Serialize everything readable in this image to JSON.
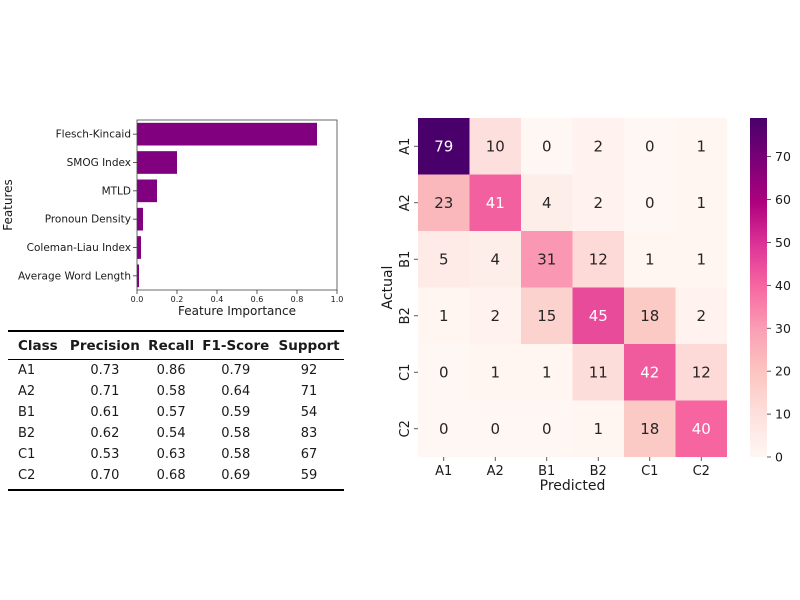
{
  "chart_data": [
    {
      "type": "bar",
      "orientation": "horizontal",
      "categories": [
        "Flesch-Kincaid",
        "SMOG Index",
        "MTLD",
        "Pronoun Density",
        "Coleman-Liau Index",
        "Average Word Length"
      ],
      "values": [
        0.9,
        0.2,
        0.1,
        0.03,
        0.02,
        0.01
      ],
      "xlabel": "Feature Importance",
      "ylabel": "Features",
      "xlim": [
        0,
        1.0
      ],
      "xticks": [
        "0.0",
        "0.2",
        "0.4",
        "0.6",
        "0.8",
        "1.0"
      ],
      "bar_color": "#800080",
      "grid": false
    },
    {
      "type": "table",
      "columns": [
        "Class",
        "Precision",
        "Recall",
        "F1-Score",
        "Support"
      ],
      "rows": [
        [
          "A1",
          "0.73",
          "0.86",
          "0.79",
          "92"
        ],
        [
          "A2",
          "0.71",
          "0.58",
          "0.64",
          "71"
        ],
        [
          "B1",
          "0.61",
          "0.57",
          "0.59",
          "54"
        ],
        [
          "B2",
          "0.62",
          "0.54",
          "0.58",
          "83"
        ],
        [
          "C1",
          "0.53",
          "0.63",
          "0.58",
          "67"
        ],
        [
          "C2",
          "0.70",
          "0.68",
          "0.69",
          "59"
        ]
      ]
    },
    {
      "type": "heatmap",
      "x_categories": [
        "A1",
        "A2",
        "B1",
        "B2",
        "C1",
        "C2"
      ],
      "y_categories": [
        "A1",
        "A2",
        "B1",
        "B2",
        "C1",
        "C2"
      ],
      "values": [
        [
          79,
          10,
          0,
          2,
          0,
          1
        ],
        [
          23,
          41,
          4,
          2,
          0,
          1
        ],
        [
          5,
          4,
          31,
          12,
          1,
          1
        ],
        [
          1,
          2,
          15,
          45,
          18,
          2
        ],
        [
          0,
          1,
          1,
          11,
          42,
          12
        ],
        [
          0,
          0,
          0,
          1,
          18,
          40
        ]
      ],
      "xlabel": "Predicted",
      "ylabel": "Actual",
      "colorbar_ticks": [
        "0",
        "10",
        "20",
        "30",
        "40",
        "50",
        "60",
        "70"
      ],
      "vmin": 0,
      "vmax": 79,
      "colormap": "RdPu"
    }
  ]
}
